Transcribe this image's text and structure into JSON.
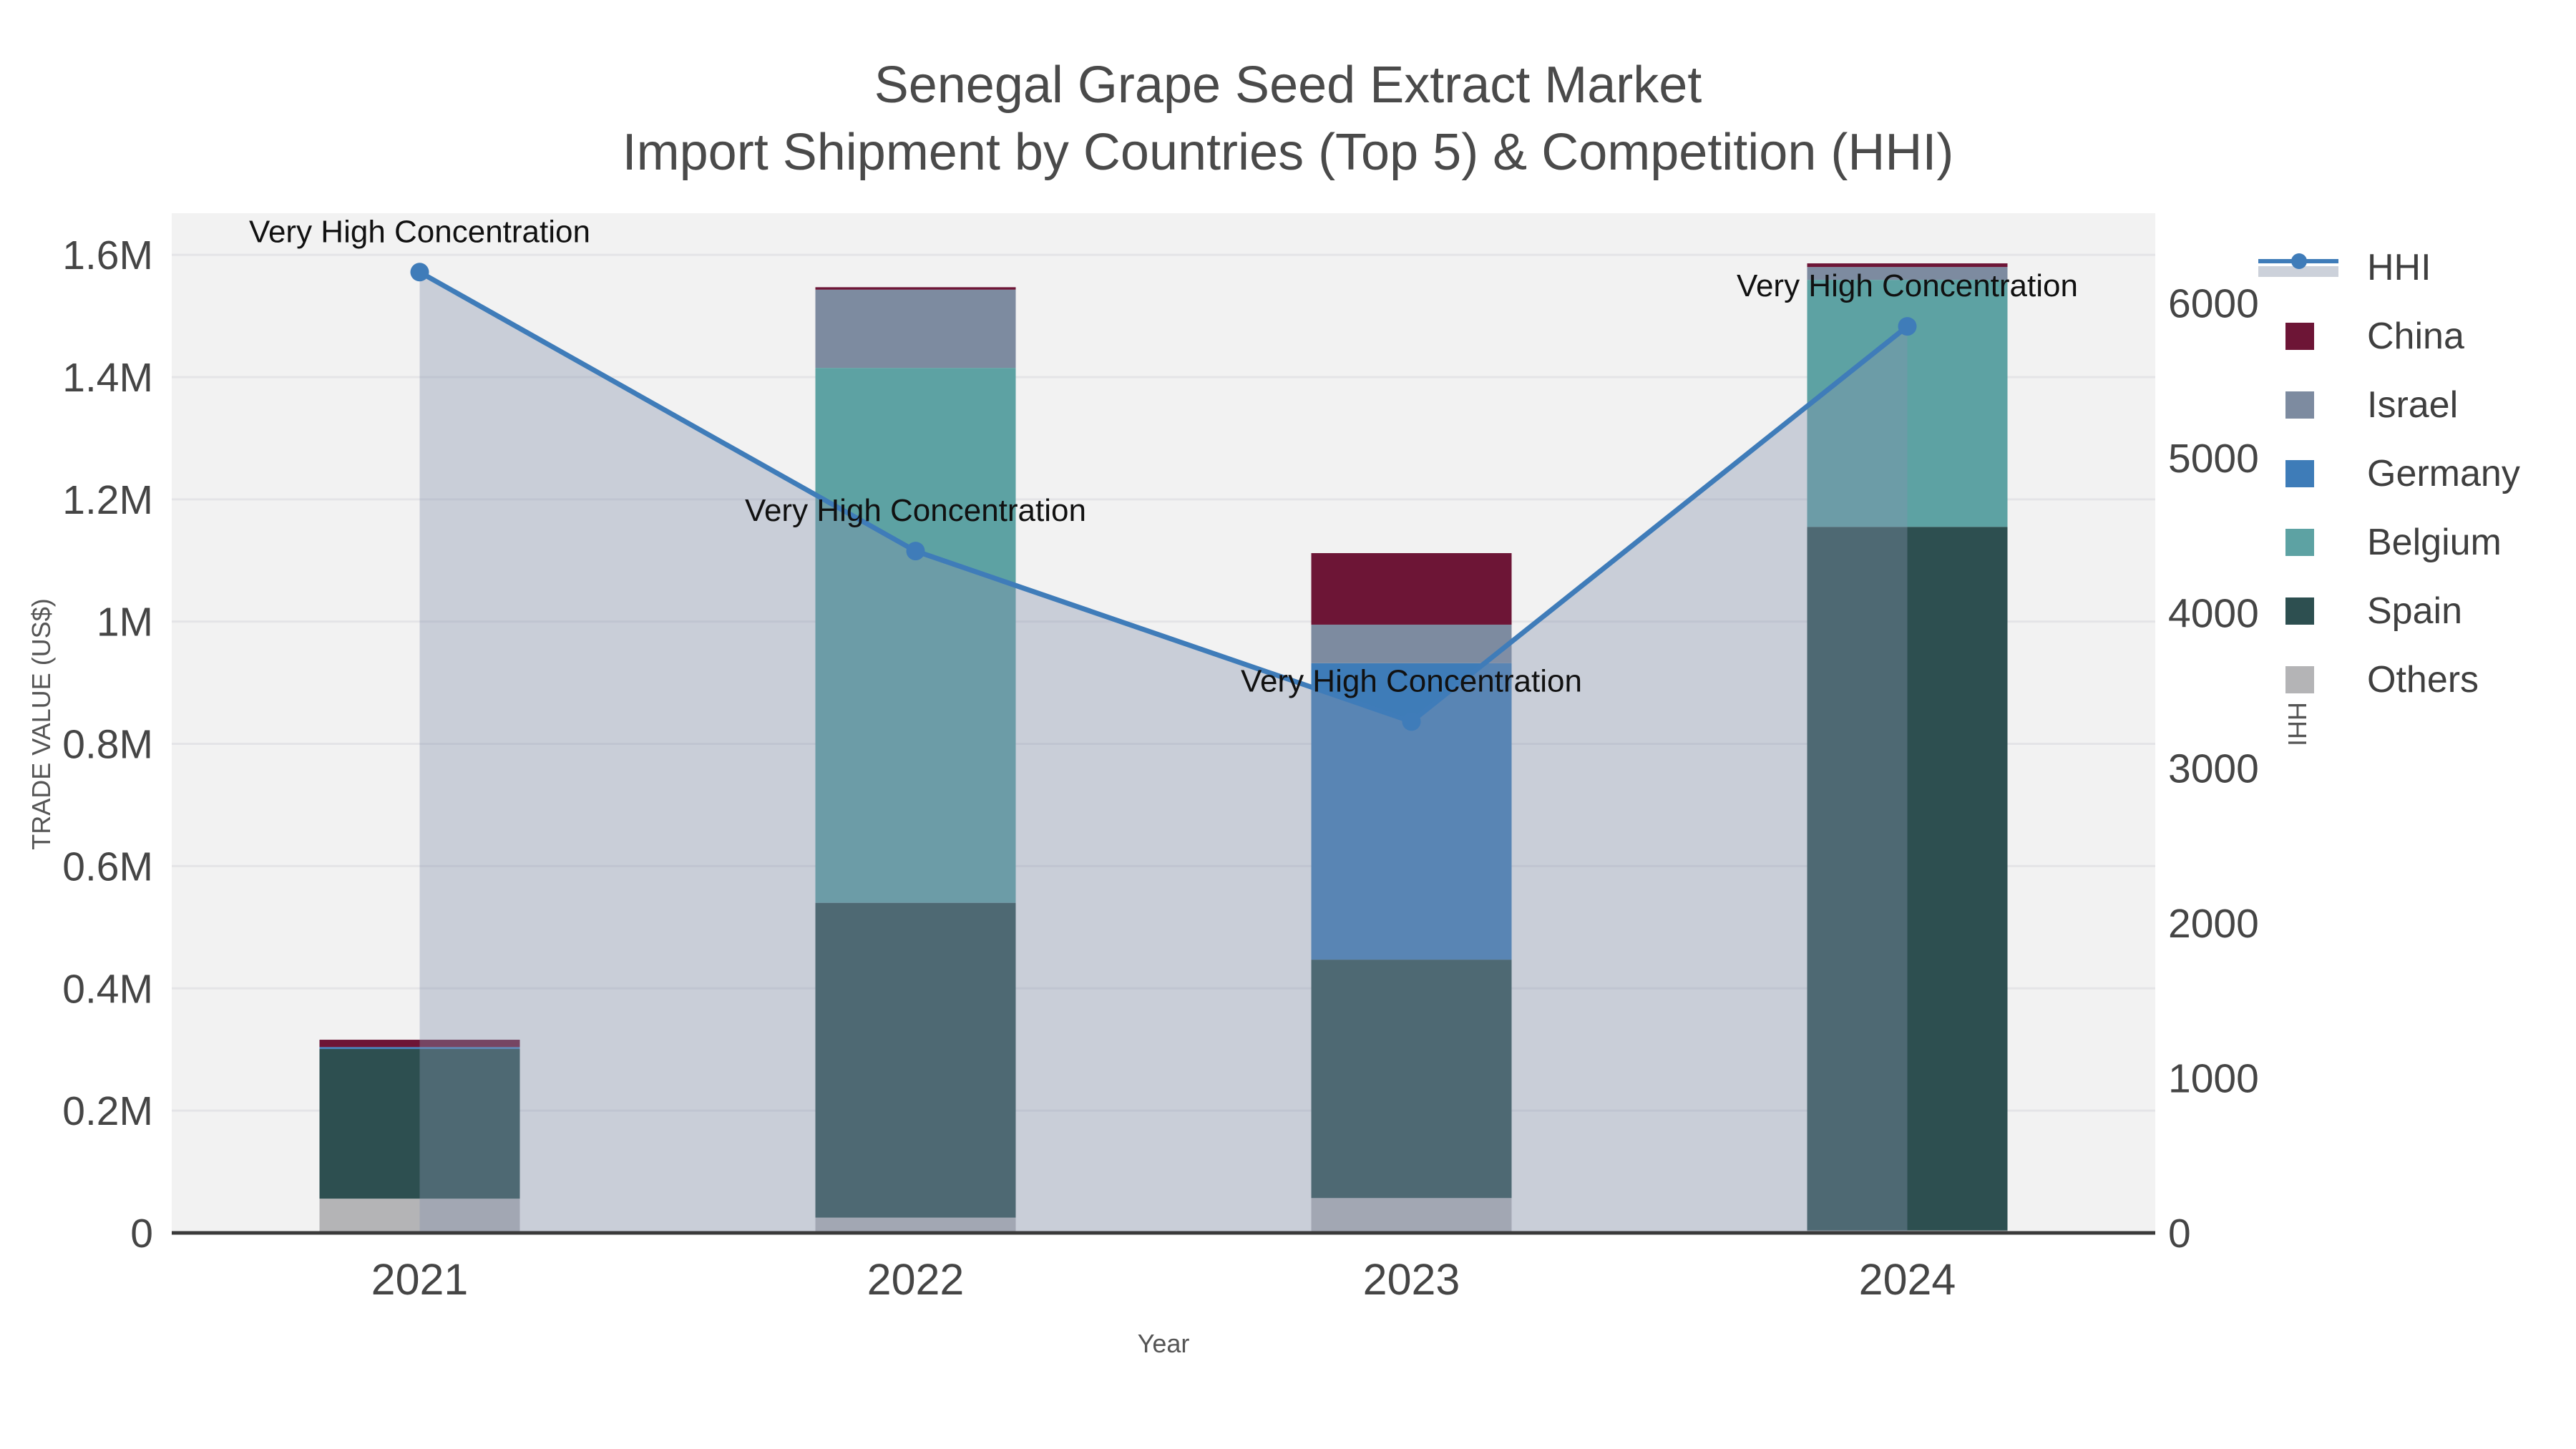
{
  "figure": {
    "title_line1": "Senegal Grape Seed Extract Market",
    "title_line2": "Import Shipment by Countries (Top 5) & Competition (HHI)"
  },
  "chart_data": {
    "type": "bar+line",
    "title": "Senegal Grape Seed Extract Market Import Shipment by Countries (Top 5) & Competition (HHI)",
    "categories": [
      "2021",
      "2022",
      "2023",
      "2024"
    ],
    "bar_series": [
      {
        "name": "Others",
        "color": "#b4b4b6",
        "values": [
          56000,
          25000,
          57000,
          4000
        ]
      },
      {
        "name": "Spain",
        "color": "#2d4f50",
        "values": [
          245000,
          515000,
          390000,
          1151000
        ]
      },
      {
        "name": "Belgium",
        "color": "#5da2a3",
        "values": [
          0,
          875000,
          0,
          404000
        ]
      },
      {
        "name": "Germany",
        "color": "#3e7cb8",
        "values": [
          3000,
          0,
          485000,
          0
        ]
      },
      {
        "name": "Israel",
        "color": "#7d8ba0",
        "values": [
          0,
          128000,
          63000,
          21000
        ]
      },
      {
        "name": "China",
        "color": "#6d1536",
        "values": [
          12000,
          4000,
          117000,
          6000
        ]
      }
    ],
    "line_series": {
      "name": "HHI",
      "axis": "right",
      "values": [
        6200,
        4400,
        3300,
        5850
      ],
      "color": "#3f7cb9",
      "marker_color": "#3f7cb9",
      "area_fill_color": "rgba(134,147,173,0.38)",
      "legend_band_color": "#ccd1da"
    },
    "annotations": [
      {
        "text": "Very High Concentration",
        "category_index": 0
      },
      {
        "text": "Very High Concentration",
        "category_index": 1
      },
      {
        "text": "Very High Concentration",
        "category_index": 2
      },
      {
        "text": "Very High Concentration",
        "category_index": 3
      }
    ],
    "axes": {
      "x": {
        "title": "Year"
      },
      "left": {
        "title": "TRADE VALUE (US$)",
        "range": [
          0,
          1668000
        ],
        "ticks": [
          {
            "value": 0,
            "label": "0"
          },
          {
            "value": 200000,
            "label": "0.2M"
          },
          {
            "value": 400000,
            "label": "0.4M"
          },
          {
            "value": 600000,
            "label": "0.6M"
          },
          {
            "value": 800000,
            "label": "0.8M"
          },
          {
            "value": 1000000,
            "label": "1M"
          },
          {
            "value": 1200000,
            "label": "1.2M"
          },
          {
            "value": 1400000,
            "label": "1.4M"
          },
          {
            "value": 1600000,
            "label": "1.6M"
          }
        ]
      },
      "right": {
        "title": "HHI",
        "range": [
          0,
          6580
        ],
        "ticks": [
          {
            "value": 0,
            "label": "0"
          },
          {
            "value": 1000,
            "label": "1000"
          },
          {
            "value": 2000,
            "label": "2000"
          },
          {
            "value": 3000,
            "label": "3000"
          },
          {
            "value": 4000,
            "label": "4000"
          },
          {
            "value": 5000,
            "label": "5000"
          },
          {
            "value": 6000,
            "label": "6000"
          }
        ]
      }
    },
    "legend": {
      "items": [
        "HHI",
        "China",
        "Israel",
        "Germany",
        "Belgium",
        "Spain",
        "Others"
      ],
      "position": "top-right"
    },
    "layout_hints": {
      "grid": "horizontal",
      "bar_mode": "stack",
      "area_under_line": true
    }
  },
  "colors": {
    "figure_bg": "#ffffff",
    "plot_bg": "#f2f2f2",
    "gridline": "#e4e4e7",
    "axis_line": "#3a3a3a",
    "tick_label": "#454545",
    "title": "#4a4a4a",
    "axis_title": "#555555",
    "legend_label": "#3f3f3f",
    "annotation": "#111111"
  }
}
